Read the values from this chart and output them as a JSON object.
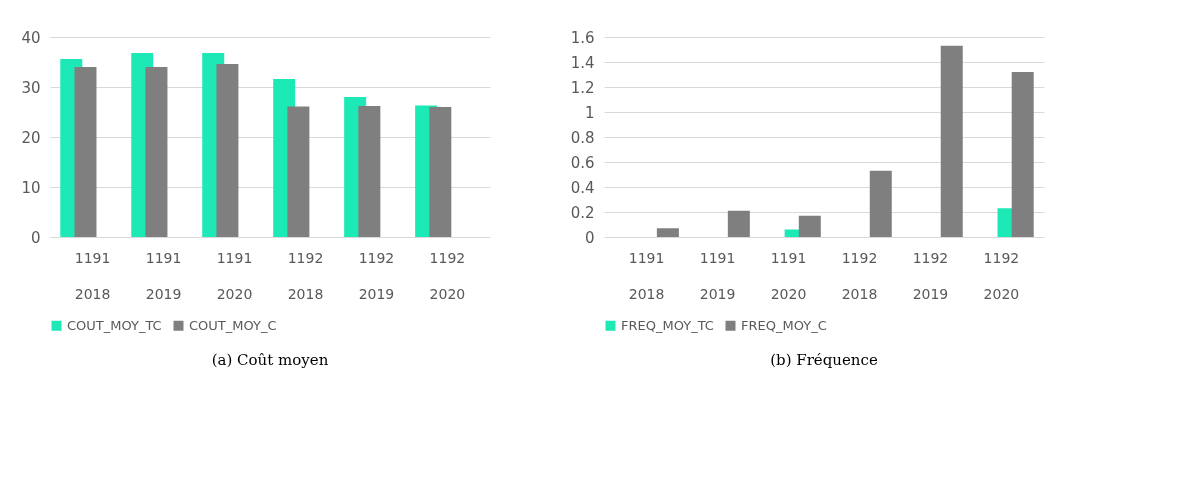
{
  "chart_data": [
    {
      "type": "bar",
      "title": "(a) Coût moyen",
      "categories": [
        "1191\n2018",
        "1191\n2019",
        "1191\n2020",
        "1192\n2018",
        "1192\n2019",
        "1192\n2020"
      ],
      "series": [
        {
          "name": "COUT_MOY_TC",
          "color": "#1de9b6",
          "values": [
            35.6,
            36.8,
            36.8,
            31.6,
            28.0,
            26.3
          ]
        },
        {
          "name": "COUT_MOY_C",
          "color": "#7f7f7f",
          "values": [
            34.0,
            34.0,
            34.6,
            26.1,
            26.2,
            26.0
          ]
        }
      ],
      "ylim": [
        0,
        40
      ],
      "yticks": [
        0,
        10,
        20,
        30,
        40
      ],
      "grid": "y",
      "legend": "bottom"
    },
    {
      "type": "bar",
      "title": "(b) Fréquence",
      "categories": [
        "1191\n2018",
        "1191\n2019",
        "1191\n2020",
        "1192\n2018",
        "1192\n2019",
        "1192\n2020"
      ],
      "series": [
        {
          "name": "FREQ_MOY_TC",
          "color": "#1de9b6",
          "values": [
            0,
            0,
            0.06,
            0,
            0,
            0.23
          ]
        },
        {
          "name": "FREQ_MOY_C",
          "color": "#7f7f7f",
          "values": [
            0.07,
            0.21,
            0.17,
            0.53,
            1.53,
            1.32
          ]
        }
      ],
      "ylim": [
        0,
        1.6
      ],
      "yticks": [
        0,
        0.2,
        0.4,
        0.6,
        0.8,
        1,
        1.2,
        1.4,
        1.6
      ],
      "grid": "y",
      "legend": "bottom"
    }
  ]
}
